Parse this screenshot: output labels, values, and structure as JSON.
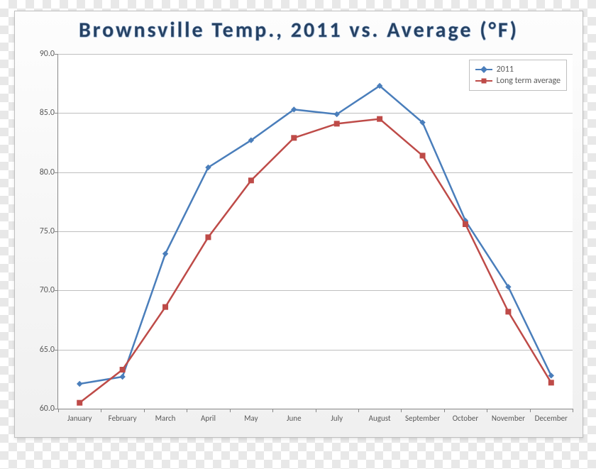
{
  "chart": {
    "type": "line",
    "title": "Brownsville Temp., 2011 vs. Average (°F)",
    "title_fontsize": 30,
    "title_color": "#254061",
    "panel_bg_top": "#fdfdfd",
    "panel_bg_bottom": "#f0f0f0",
    "plot_bg": "#ffffff",
    "grid_color": "#bfbfbf",
    "axis_color": "#888888",
    "tick_label_color": "#595959",
    "tick_label_fontsize": 12,
    "x_label_fontsize": 11,
    "ylim": [
      60.0,
      90.0
    ],
    "ytick_step": 5.0,
    "yticks": [
      "60.0",
      "65.0",
      "70.0",
      "75.0",
      "80.0",
      "85.0",
      "90.0"
    ],
    "categories": [
      "January",
      "February",
      "March",
      "April",
      "May",
      "June",
      "July",
      "August",
      "September",
      "October",
      "November",
      "December"
    ],
    "series": [
      {
        "name": "2011",
        "color": "#4a7ebb",
        "marker": "diamond",
        "marker_size": 7,
        "line_width": 2.5,
        "values": [
          62.1,
          62.7,
          73.1,
          80.4,
          82.7,
          85.3,
          84.9,
          87.3,
          84.2,
          75.9,
          70.3,
          62.8
        ]
      },
      {
        "name": "Long term average",
        "color": "#be4b48",
        "marker": "square",
        "marker_size": 7,
        "line_width": 2.5,
        "values": [
          60.5,
          63.3,
          68.6,
          74.5,
          79.3,
          82.9,
          84.1,
          84.5,
          81.4,
          75.6,
          68.2,
          62.2
        ]
      }
    ],
    "legend": {
      "position": "top-right",
      "bg": "#ffffff",
      "border": "#bfbfbf",
      "fontsize": 12
    }
  }
}
